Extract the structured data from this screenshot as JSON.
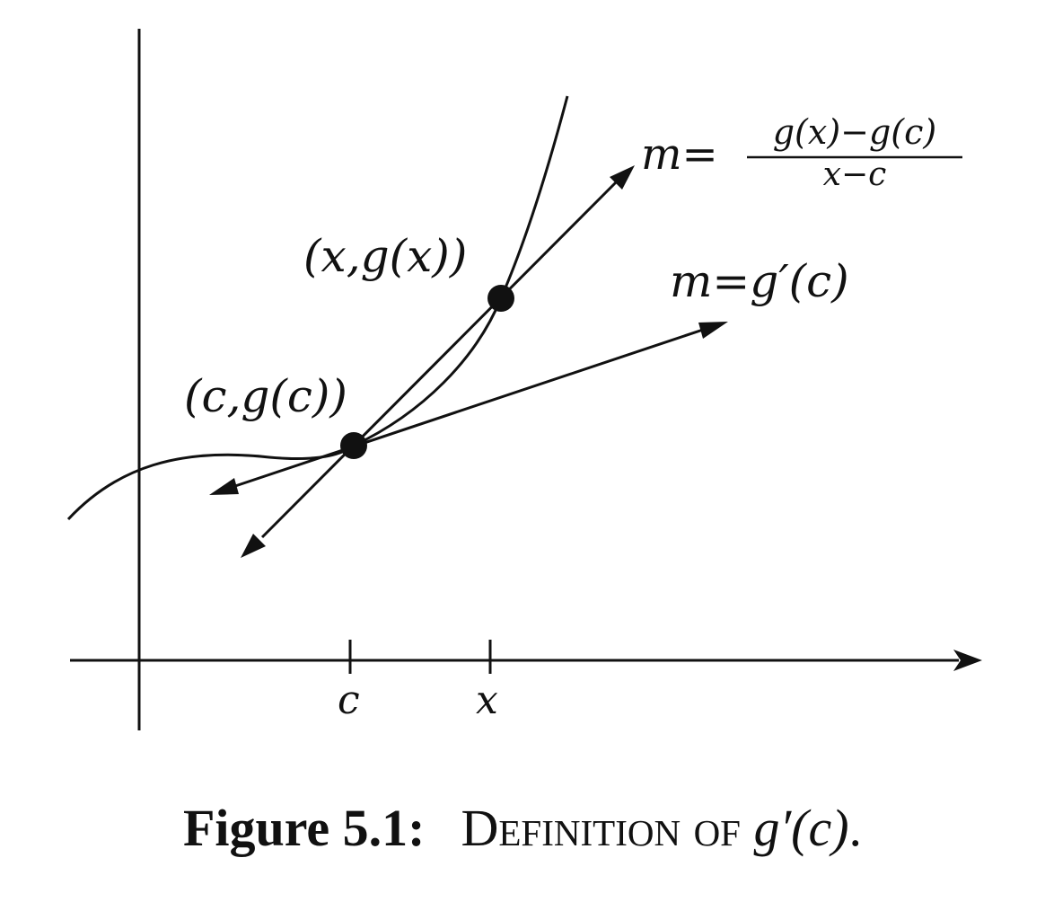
{
  "diagram": {
    "point_c_label": "(c,g(c))",
    "point_x_label": "(x,g(x))",
    "tick_c_label": "c",
    "tick_x_label": "x",
    "secant_slope_lhs": "m=",
    "secant_numerator": "g(x)−g(c)",
    "secant_denominator": "x−c",
    "tangent_slope_label": "m=g′(c)"
  },
  "caption": {
    "label": "Figure 5.1:",
    "text": "Definition of ",
    "math": "g′(c)",
    "end": "."
  }
}
